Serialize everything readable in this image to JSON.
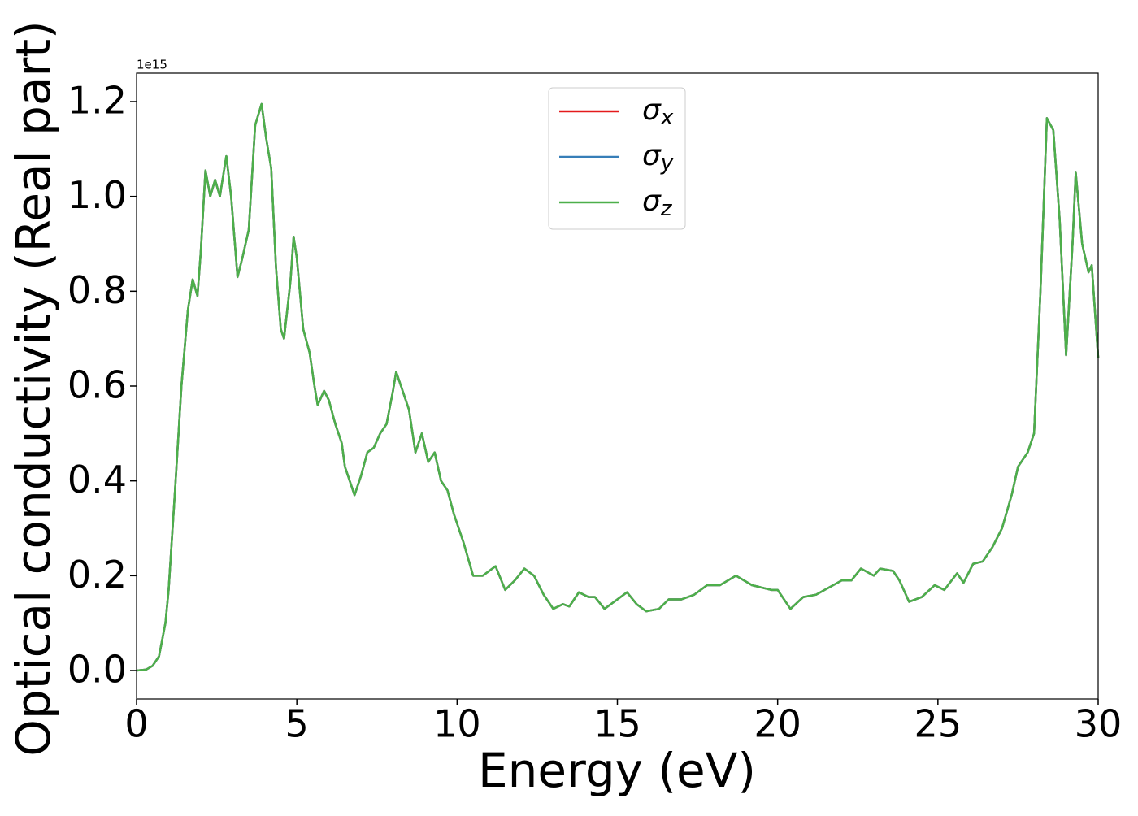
{
  "chart_data": {
    "type": "line",
    "xlabel": "Energy (eV)",
    "ylabel": "Optical conductivity (Real part)",
    "y_offset_label": "1e15",
    "xlim": [
      0,
      30
    ],
    "xticks": [
      0,
      5,
      10,
      15,
      20,
      25,
      30
    ],
    "ylim": [
      -0.06,
      1.26
    ],
    "yticks": [
      {
        "value": 0,
        "label": "0.0"
      },
      0.2,
      0.4,
      0.6,
      0.8,
      {
        "value": 1,
        "label": "1.0"
      },
      1.2
    ],
    "grid": false,
    "legend": "upper center",
    "x": [
      0,
      0.3,
      0.5,
      0.7,
      0.9,
      1.0,
      1.2,
      1.4,
      1.6,
      1.75,
      1.9,
      2.0,
      2.15,
      2.3,
      2.45,
      2.6,
      2.8,
      2.95,
      3.15,
      3.3,
      3.5,
      3.7,
      3.9,
      4.05,
      4.2,
      4.35,
      4.5,
      4.6,
      4.8,
      4.9,
      5.0,
      5.2,
      5.4,
      5.55,
      5.65,
      5.85,
      6.0,
      6.2,
      6.4,
      6.5,
      6.7,
      6.8,
      7.0,
      7.2,
      7.4,
      7.6,
      7.8,
      8.0,
      8.1,
      8.25,
      8.5,
      8.7,
      8.9,
      9.1,
      9.3,
      9.5,
      9.7,
      9.9,
      10.2,
      10.5,
      10.8,
      11.2,
      11.5,
      11.8,
      12.1,
      12.4,
      12.7,
      13.0,
      13.3,
      13.5,
      13.8,
      14.1,
      14.3,
      14.6,
      15.0,
      15.3,
      15.6,
      15.9,
      16.3,
      16.6,
      17.0,
      17.4,
      17.8,
      18.2,
      18.7,
      19.2,
      19.8,
      20.0,
      20.4,
      20.8,
      21.2,
      21.6,
      22.0,
      22.3,
      22.6,
      23.0,
      23.2,
      23.6,
      23.8,
      24.1,
      24.5,
      24.9,
      25.2,
      25.6,
      25.8,
      26.1,
      26.4,
      26.7,
      27.0,
      27.3,
      27.5,
      27.8,
      28.0,
      28.2,
      28.4,
      28.6,
      28.8,
      29.0,
      29.2,
      29.3,
      29.5,
      29.7,
      29.8,
      30
    ],
    "series": [
      {
        "name": "σx",
        "color": "#e41a1c",
        "values": [
          0,
          0.002,
          0.01,
          0.03,
          0.1,
          0.17,
          0.38,
          0.6,
          0.76,
          0.825,
          0.79,
          0.88,
          1.055,
          1.0,
          1.035,
          1.0,
          1.085,
          1.0,
          0.83,
          0.87,
          0.93,
          1.15,
          1.195,
          1.12,
          1.06,
          0.85,
          0.72,
          0.7,
          0.82,
          0.915,
          0.87,
          0.72,
          0.67,
          0.6,
          0.56,
          0.59,
          0.57,
          0.52,
          0.48,
          0.43,
          0.39,
          0.37,
          0.41,
          0.46,
          0.47,
          0.5,
          0.52,
          0.59,
          0.63,
          0.6,
          0.55,
          0.46,
          0.5,
          0.44,
          0.46,
          0.4,
          0.38,
          0.33,
          0.27,
          0.2,
          0.2,
          0.22,
          0.17,
          0.19,
          0.215,
          0.2,
          0.16,
          0.13,
          0.14,
          0.135,
          0.165,
          0.155,
          0.155,
          0.13,
          0.15,
          0.165,
          0.14,
          0.125,
          0.13,
          0.15,
          0.15,
          0.16,
          0.18,
          0.18,
          0.2,
          0.18,
          0.17,
          0.17,
          0.13,
          0.155,
          0.16,
          0.175,
          0.19,
          0.19,
          0.215,
          0.2,
          0.215,
          0.21,
          0.19,
          0.145,
          0.155,
          0.18,
          0.17,
          0.205,
          0.185,
          0.225,
          0.23,
          0.26,
          0.3,
          0.37,
          0.43,
          0.46,
          0.5,
          0.8,
          1.165,
          1.14,
          0.95,
          0.665,
          0.9,
          1.05,
          0.9,
          0.84,
          0.855,
          0.66
        ]
      },
      {
        "name": "σy",
        "color": "#377eb8",
        "values": [
          0,
          0.002,
          0.01,
          0.03,
          0.1,
          0.17,
          0.38,
          0.6,
          0.76,
          0.825,
          0.79,
          0.88,
          1.055,
          1.0,
          1.035,
          1.0,
          1.085,
          1.0,
          0.83,
          0.87,
          0.93,
          1.15,
          1.195,
          1.12,
          1.06,
          0.85,
          0.72,
          0.7,
          0.82,
          0.915,
          0.87,
          0.72,
          0.67,
          0.6,
          0.56,
          0.59,
          0.57,
          0.52,
          0.48,
          0.43,
          0.39,
          0.37,
          0.41,
          0.46,
          0.47,
          0.5,
          0.52,
          0.59,
          0.63,
          0.6,
          0.55,
          0.46,
          0.5,
          0.44,
          0.46,
          0.4,
          0.38,
          0.33,
          0.27,
          0.2,
          0.2,
          0.22,
          0.17,
          0.19,
          0.215,
          0.2,
          0.16,
          0.13,
          0.14,
          0.135,
          0.165,
          0.155,
          0.155,
          0.13,
          0.15,
          0.165,
          0.14,
          0.125,
          0.13,
          0.15,
          0.15,
          0.16,
          0.18,
          0.18,
          0.2,
          0.18,
          0.17,
          0.17,
          0.13,
          0.155,
          0.16,
          0.175,
          0.19,
          0.19,
          0.215,
          0.2,
          0.215,
          0.21,
          0.19,
          0.145,
          0.155,
          0.18,
          0.17,
          0.205,
          0.185,
          0.225,
          0.23,
          0.26,
          0.3,
          0.37,
          0.43,
          0.46,
          0.5,
          0.8,
          1.165,
          1.14,
          0.95,
          0.665,
          0.9,
          1.05,
          0.9,
          0.84,
          0.855,
          0.66
        ]
      },
      {
        "name": "σz",
        "color": "#4daf4a",
        "values": [
          0,
          0.002,
          0.01,
          0.03,
          0.1,
          0.17,
          0.38,
          0.6,
          0.76,
          0.825,
          0.79,
          0.88,
          1.055,
          1.0,
          1.035,
          1.0,
          1.085,
          1.0,
          0.83,
          0.87,
          0.93,
          1.15,
          1.195,
          1.12,
          1.06,
          0.85,
          0.72,
          0.7,
          0.82,
          0.915,
          0.87,
          0.72,
          0.67,
          0.6,
          0.56,
          0.59,
          0.57,
          0.52,
          0.48,
          0.43,
          0.39,
          0.37,
          0.41,
          0.46,
          0.47,
          0.5,
          0.52,
          0.59,
          0.63,
          0.6,
          0.55,
          0.46,
          0.5,
          0.44,
          0.46,
          0.4,
          0.38,
          0.33,
          0.27,
          0.2,
          0.2,
          0.22,
          0.17,
          0.19,
          0.215,
          0.2,
          0.16,
          0.13,
          0.14,
          0.135,
          0.165,
          0.155,
          0.155,
          0.13,
          0.15,
          0.165,
          0.14,
          0.125,
          0.13,
          0.15,
          0.15,
          0.16,
          0.18,
          0.18,
          0.2,
          0.18,
          0.17,
          0.17,
          0.13,
          0.155,
          0.16,
          0.175,
          0.19,
          0.19,
          0.215,
          0.2,
          0.215,
          0.21,
          0.19,
          0.145,
          0.155,
          0.18,
          0.17,
          0.205,
          0.185,
          0.225,
          0.23,
          0.26,
          0.3,
          0.37,
          0.43,
          0.46,
          0.5,
          0.8,
          1.165,
          1.14,
          0.95,
          0.665,
          0.9,
          1.05,
          0.9,
          0.84,
          0.855,
          0.66
        ]
      }
    ]
  }
}
